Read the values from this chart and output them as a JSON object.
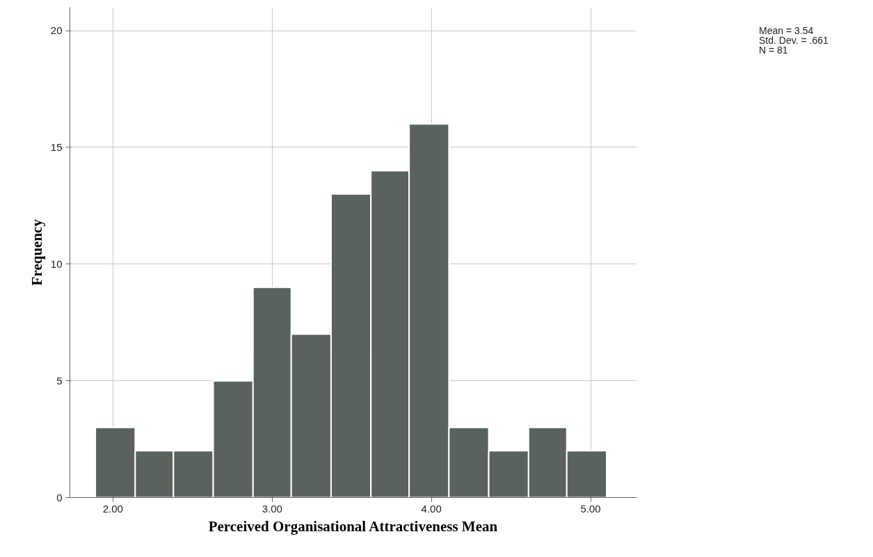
{
  "chart_data": {
    "type": "histogram",
    "xlabel": "Perceived Organisational Attractiveness Mean",
    "ylabel": "Frequency",
    "bins": [
      1.89,
      2.14,
      2.38,
      2.63,
      2.88,
      3.12,
      3.37,
      3.62,
      3.86,
      4.11,
      4.36,
      4.61,
      4.85,
      5.1
    ],
    "values": [
      3,
      2,
      2,
      5,
      9,
      7,
      13,
      14,
      16,
      3,
      2,
      3,
      2
    ],
    "color": "#59625c",
    "xlim": [
      1.73,
      5.29
    ],
    "ylim": [
      0,
      21
    ],
    "xticks": [
      {
        "value": 2,
        "label": "2.00"
      },
      {
        "value": 3,
        "label": "3.00"
      },
      {
        "value": 4,
        "label": "4.00"
      },
      {
        "value": 5,
        "label": "5.00"
      }
    ],
    "yticks": [
      0,
      5,
      10,
      15,
      20
    ],
    "grid": true,
    "annotations": [
      "Mean = 3.54",
      "Std. Dev. = .661",
      "N = 81"
    ]
  }
}
